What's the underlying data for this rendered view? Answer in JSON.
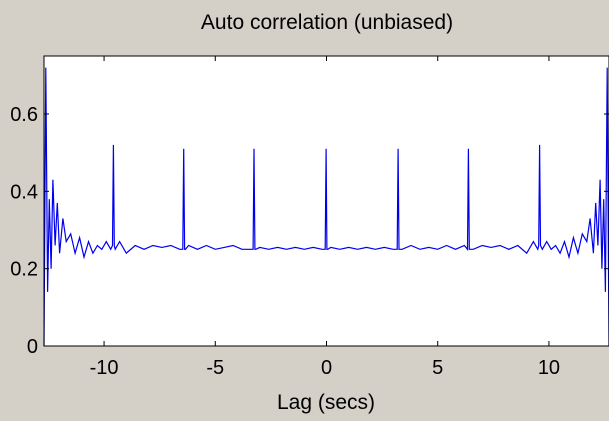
{
  "chart_data": {
    "type": "line",
    "title": "Auto correlation (unbiased)",
    "xlabel": "Lag (secs)",
    "ylabel": "",
    "xlim": [
      -12.7,
      12.7
    ],
    "ylim": [
      0,
      0.75
    ],
    "xticks": [
      -10,
      -5,
      0,
      5,
      10
    ],
    "xtick_labels": [
      "-10",
      "-5",
      "0",
      "5",
      "10"
    ],
    "yticks": [
      0,
      0.2,
      0.4,
      0.6
    ],
    "ytick_labels": [
      "0",
      "0.2",
      "0.4",
      "0.6"
    ],
    "grid": false,
    "series": [
      {
        "color": "#0000ee",
        "x": [
          -12.7,
          -12.62,
          -12.54,
          -12.46,
          -12.38,
          -12.3,
          -12.2,
          -12.1,
          -12.0,
          -11.85,
          -11.7,
          -11.5,
          -11.3,
          -11.1,
          -10.9,
          -10.7,
          -10.5,
          -10.3,
          -10.1,
          -9.9,
          -9.7,
          -9.62,
          -9.58,
          -9.54,
          -9.5,
          -9.3,
          -9.0,
          -8.6,
          -8.2,
          -7.8,
          -7.4,
          -7.0,
          -6.6,
          -6.46,
          -6.42,
          -6.38,
          -6.34,
          -6.2,
          -5.8,
          -5.4,
          -5.0,
          -4.6,
          -4.2,
          -3.8,
          -3.4,
          -3.3,
          -3.26,
          -3.22,
          -3.18,
          -3.0,
          -2.6,
          -2.2,
          -1.8,
          -1.4,
          -1.0,
          -0.6,
          -0.2,
          -0.06,
          -0.02,
          0.02,
          0.06,
          0.2,
          0.6,
          1.0,
          1.4,
          1.8,
          2.2,
          2.6,
          3.0,
          3.18,
          3.22,
          3.26,
          3.3,
          3.4,
          3.8,
          4.2,
          4.6,
          5.0,
          5.4,
          5.8,
          6.2,
          6.34,
          6.38,
          6.42,
          6.46,
          6.6,
          7.0,
          7.4,
          7.8,
          8.2,
          8.6,
          9.0,
          9.3,
          9.5,
          9.54,
          9.58,
          9.62,
          9.7,
          9.9,
          10.1,
          10.3,
          10.5,
          10.7,
          10.9,
          11.1,
          11.3,
          11.5,
          11.7,
          11.85,
          12.0,
          12.1,
          12.2,
          12.3,
          12.38,
          12.46,
          12.54,
          12.62,
          12.7
        ],
        "y": [
          0.0,
          0.72,
          0.14,
          0.38,
          0.2,
          0.43,
          0.26,
          0.37,
          0.24,
          0.33,
          0.27,
          0.29,
          0.24,
          0.28,
          0.23,
          0.27,
          0.24,
          0.26,
          0.25,
          0.27,
          0.25,
          0.26,
          0.52,
          0.26,
          0.25,
          0.27,
          0.24,
          0.26,
          0.25,
          0.26,
          0.255,
          0.26,
          0.25,
          0.25,
          0.51,
          0.25,
          0.25,
          0.26,
          0.25,
          0.26,
          0.25,
          0.255,
          0.26,
          0.25,
          0.25,
          0.25,
          0.51,
          0.25,
          0.25,
          0.255,
          0.25,
          0.255,
          0.25,
          0.255,
          0.25,
          0.255,
          0.25,
          0.25,
          0.51,
          0.25,
          0.25,
          0.255,
          0.25,
          0.255,
          0.25,
          0.255,
          0.25,
          0.255,
          0.25,
          0.25,
          0.51,
          0.25,
          0.25,
          0.25,
          0.26,
          0.25,
          0.255,
          0.25,
          0.26,
          0.25,
          0.26,
          0.25,
          0.51,
          0.25,
          0.25,
          0.25,
          0.26,
          0.255,
          0.26,
          0.25,
          0.26,
          0.24,
          0.27,
          0.25,
          0.26,
          0.52,
          0.26,
          0.25,
          0.27,
          0.25,
          0.26,
          0.24,
          0.27,
          0.23,
          0.28,
          0.24,
          0.29,
          0.27,
          0.33,
          0.24,
          0.37,
          0.26,
          0.43,
          0.2,
          0.38,
          0.14,
          0.72,
          0.0
        ]
      }
    ]
  }
}
